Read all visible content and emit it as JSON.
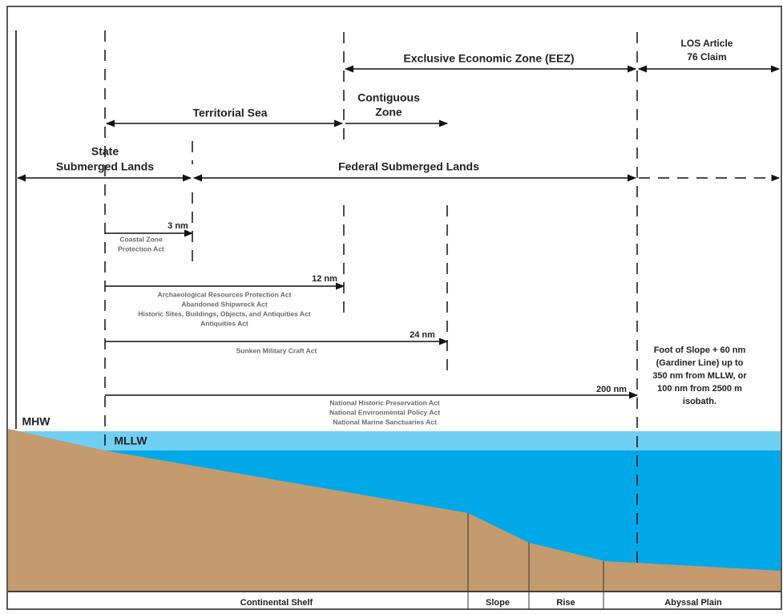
{
  "zones": {
    "eez": "Exclusive Economic Zone (EEZ)",
    "los_claim": [
      "LOS Article",
      "76 Claim"
    ],
    "territorial_sea": "Territorial Sea",
    "contiguous_zone": [
      "Contiguous",
      "Zone"
    ],
    "state_lands": [
      "State",
      "Submerged Lands"
    ],
    "federal_lands": "Federal Submerged Lands"
  },
  "limits": [
    {
      "distance": "3 nm",
      "acts": [
        "Coastal Zone",
        "Protection Act"
      ]
    },
    {
      "distance": "12 nm",
      "acts": [
        "Archaeological Resources Protection Act",
        "Abandoned Shipwreck Act",
        "Historic Sites, Buildings, Objects, and Antiquities Act",
        "Antiquities Act"
      ]
    },
    {
      "distance": "24 nm",
      "acts": [
        "Sunken Military Craft Act"
      ]
    },
    {
      "distance": "200 nm",
      "acts": [
        "National Historic Preservation Act",
        "National Environmental Policy Act",
        "National Marine Sanctuaries Act"
      ]
    }
  ],
  "foot_of_slope_note": [
    "Foot of Slope + 60 nm",
    "(Gardiner Line) up to",
    "350 nm from MLLW, or",
    "100 nm from 2500 m",
    "isobath."
  ],
  "water_levels": {
    "mhw": "MHW",
    "mllw": "MLLW"
  },
  "seafloor": [
    "Continental Shelf",
    "Slope",
    "Rise",
    "Abyssal Plain"
  ]
}
